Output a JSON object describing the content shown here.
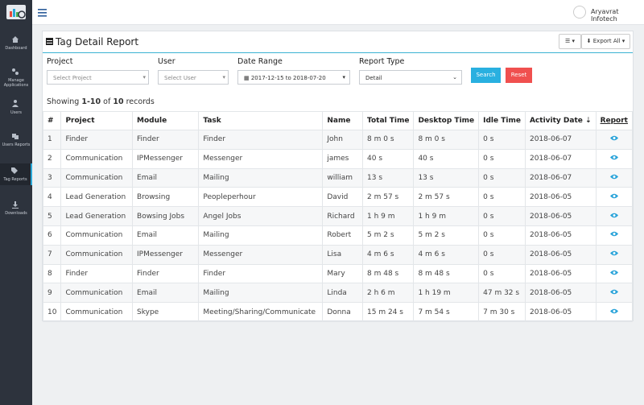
{
  "sidebar": {
    "items": [
      "Dashboard",
      "Manage Applications",
      "Users",
      "Users Reports",
      "Tag Reports",
      "Downloads"
    ]
  },
  "topbar": {
    "user": "Aryavrat Infotech"
  },
  "panel": {
    "title": "Tag Detail Report",
    "export": "Export All"
  },
  "filters": {
    "labels": [
      "Project",
      "User",
      "Date Range",
      "Report Type"
    ],
    "placeholders": [
      "Select Project",
      "Select User",
      "2017-12-15 to 2018-07-20",
      "Detail"
    ],
    "buttons": [
      "Search",
      "Reset"
    ]
  },
  "summary": [
    "Showing ",
    "1-10",
    " of ",
    "10",
    " records"
  ],
  "table": {
    "headers": [
      "#",
      "Project",
      "Module",
      "Task",
      "Name",
      "Total Time",
      "Desktop Time",
      "Idle Time",
      "Activity Date",
      "Report"
    ],
    "rows": [
      [
        "1",
        "Finder",
        "Finder",
        "Finder",
        "John",
        "8 m 0 s",
        "8 m 0 s",
        "0 s",
        "2018-06-07"
      ],
      [
        "2",
        "Communication",
        "IPMessenger",
        "Messenger",
        "james",
        "40 s",
        "40 s",
        "0 s",
        "2018-06-07"
      ],
      [
        "3",
        "Communication",
        "Email",
        "Mailing",
        "william",
        "13 s",
        "13 s",
        "0 s",
        "2018-06-07"
      ],
      [
        "4",
        "Lead Generation",
        "Browsing",
        "Peopleperhour",
        "David",
        "2 m 57 s",
        "2 m 57 s",
        "0 s",
        "2018-06-05"
      ],
      [
        "5",
        "Lead Generation",
        "Bowsing Jobs",
        "Angel Jobs",
        "Richard",
        "1 h 9 m",
        "1 h 9 m",
        "0 s",
        "2018-06-05"
      ],
      [
        "6",
        "Communication",
        "Email",
        "Mailing",
        "Robert",
        "5 m 2 s",
        "5 m 2 s",
        "0 s",
        "2018-06-05"
      ],
      [
        "7",
        "Communication",
        "IPMessenger",
        "Messenger",
        "Lisa",
        "4 m 6 s",
        "4 m 6 s",
        "0 s",
        "2018-06-05"
      ],
      [
        "8",
        "Finder",
        "Finder",
        "Finder",
        "Mary",
        "8 m 48 s",
        "8 m 48 s",
        "0 s",
        "2018-06-05"
      ],
      [
        "9",
        "Communication",
        "Email",
        "Mailing",
        "Linda",
        "2 h 6 m",
        "1 h 19 m",
        "47 m 32 s",
        "2018-06-05"
      ],
      [
        "10",
        "Communication",
        "Skype",
        "Meeting/Sharing/Communicate",
        "Donna",
        "15 m 24 s",
        "7 m 54 s",
        "7 m 30 s",
        "2018-06-05"
      ]
    ]
  }
}
